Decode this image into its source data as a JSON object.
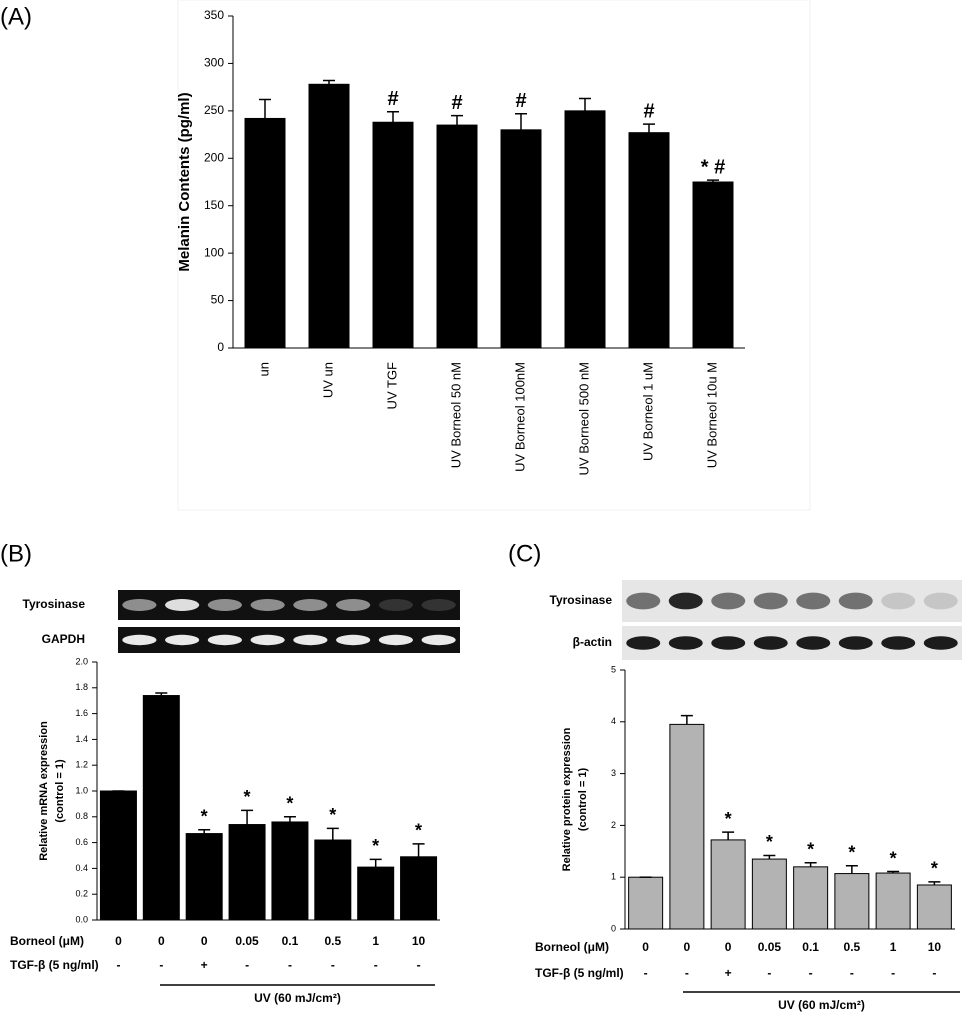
{
  "chart_data": [
    {
      "type": "bar",
      "panel_label": "(A)",
      "y_label": "Melanin Contents (pg/ml)",
      "categories": [
        "un",
        "UV un",
        "UV TGF",
        "UV Borneol 50 nM",
        "UV Borneol 100nM",
        "UV Borneol 500 nM",
        "UV Borneol 1 uM",
        "UV Borneol 10u M"
      ],
      "values": [
        242,
        278,
        238,
        235,
        230,
        250,
        227,
        175
      ],
      "errors": [
        20,
        4,
        11,
        10,
        17,
        13,
        9,
        2
      ],
      "annotations": [
        null,
        null,
        "#",
        "#",
        "#",
        null,
        "#",
        "* #"
      ],
      "color": "#000000",
      "ylim": [
        0,
        350
      ],
      "yticks": [
        0,
        50,
        100,
        150,
        200,
        250,
        300,
        350
      ]
    },
    {
      "type": "bar",
      "panel_label": "(B)",
      "blot_labels": [
        "Tyrosinase",
        "GAPDH"
      ],
      "y_label": [
        "Relative mRNA expression",
        "(control = 1)"
      ],
      "x_label": "Borneol (μM)",
      "categories": [
        "0",
        "0",
        "0",
        "0.05",
        "0.1",
        "0.5",
        "1",
        "10"
      ],
      "tgf_label": "TGF-β (5 ng/ml)",
      "tgf": [
        "-",
        "-",
        "+",
        "-",
        "-",
        "-",
        "-",
        "-"
      ],
      "uv_label": "UV (60 mJ/cm²)",
      "values": [
        1.0,
        1.74,
        0.67,
        0.74,
        0.76,
        0.62,
        0.41,
        0.49
      ],
      "errors": [
        0,
        0.02,
        0.03,
        0.11,
        0.04,
        0.09,
        0.06,
        0.1
      ],
      "annotations": [
        null,
        null,
        "*",
        "*",
        "*",
        "*",
        "*",
        "*"
      ],
      "color": "#000000",
      "ylim": [
        0,
        2
      ],
      "yticks": [
        {
          "value": 0,
          "label": "0.0"
        },
        0.2,
        0.4,
        0.6,
        0.8,
        {
          "value": 1,
          "label": "1.0"
        },
        1.2,
        1.4,
        1.6,
        1.8,
        {
          "value": 2,
          "label": "2.0"
        }
      ]
    },
    {
      "type": "bar",
      "panel_label": "(C)",
      "blot_labels": [
        "Tyrosinase",
        "β-actin"
      ],
      "y_label": [
        "Relative protein expression",
        "(control = 1)"
      ],
      "x_label": "Borneol (μM)",
      "categories": [
        "0",
        "0",
        "0",
        "0.05",
        "0.1",
        "0.5",
        "1",
        "10"
      ],
      "tgf_label": "TGF-β (5 ng/ml)",
      "tgf": [
        "-",
        "-",
        "+",
        "-",
        "-",
        "-",
        "-",
        "-"
      ],
      "uv_label": "UV (60 mJ/cm²)",
      "values": [
        1.0,
        3.95,
        1.72,
        1.35,
        1.2,
        1.07,
        1.08,
        0.85
      ],
      "errors": [
        0,
        0.17,
        0.15,
        0.07,
        0.08,
        0.15,
        0.03,
        0.06
      ],
      "annotations": [
        null,
        null,
        "*",
        "*",
        "*",
        "*",
        "*",
        "*"
      ],
      "color": "#b3b3b3",
      "ylim": [
        0,
        5
      ],
      "yticks": [
        0,
        1,
        2,
        3,
        4,
        5
      ]
    }
  ]
}
